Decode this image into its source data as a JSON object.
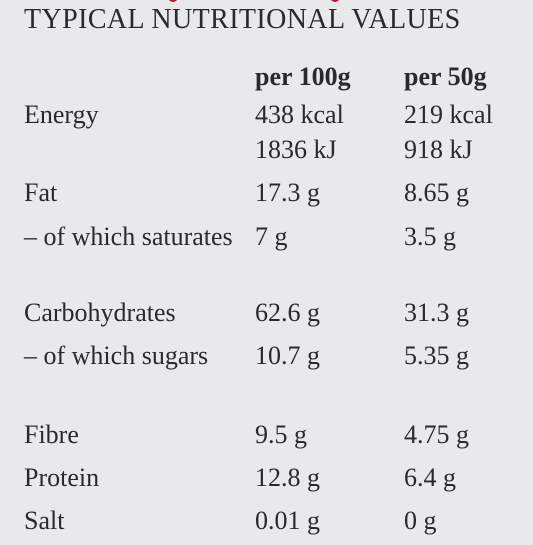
{
  "title": "TYPICAL NUTRITIONAL VALUES",
  "columns": {
    "per100": "per 100g",
    "per50": "per 50g"
  },
  "rows": [
    {
      "label": "Energy",
      "per100": "438 kcal",
      "per50": "219 kcal"
    },
    {
      "label": "",
      "per100": "1836 kJ",
      "per50": "918 kJ"
    },
    {
      "label": "Fat",
      "per100": "17.3 g",
      "per50": "8.65 g"
    },
    {
      "label": "– of which saturates",
      "per100": "7 g",
      "per50": "3.5 g"
    },
    {
      "label": "Carbohydrates",
      "per100": "62.6 g",
      "per50": "31.3 g"
    },
    {
      "label": "– of which sugars",
      "per100": "10.7 g",
      "per50": "5.35 g"
    },
    {
      "label": "Fibre",
      "per100": "9.5 g",
      "per50": "4.75 g"
    },
    {
      "label": "Protein",
      "per100": "12.8 g",
      "per50": "6.4 g"
    },
    {
      "label": "Salt",
      "per100": "0.01 g",
      "per50": "0 g"
    }
  ],
  "colors": {
    "background": "#e9e9ec",
    "text": "#2a2a2c",
    "accent_red": "#b5162f"
  }
}
